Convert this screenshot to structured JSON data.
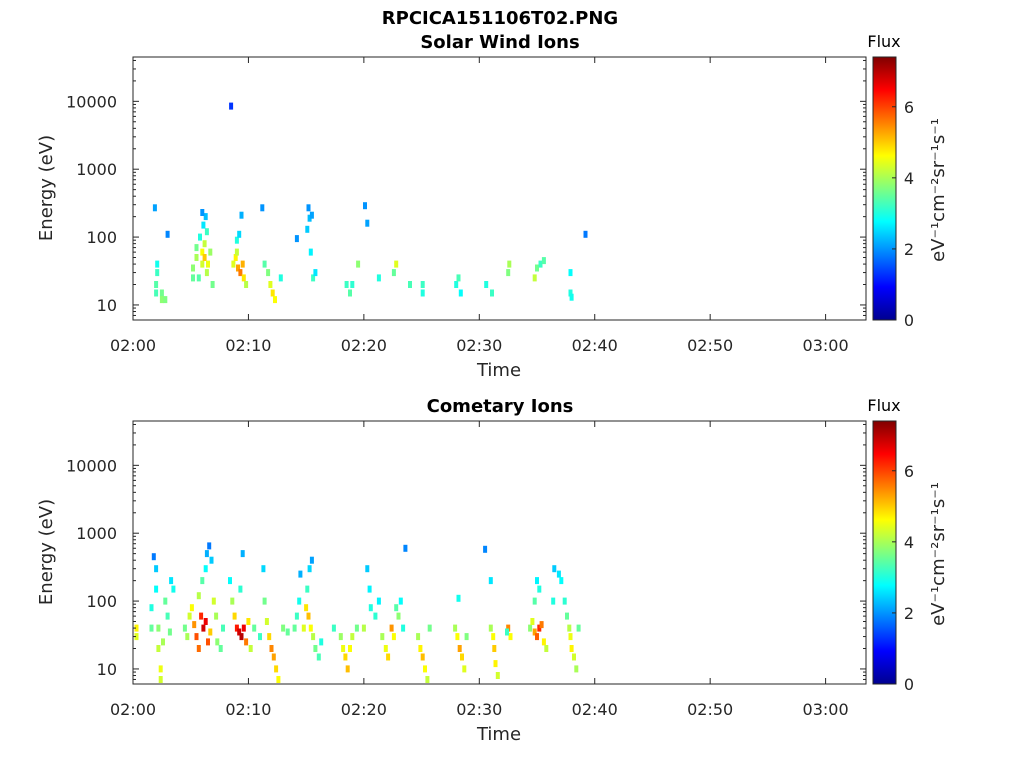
{
  "figure": {
    "title": "RPCICA151106T02.PNG"
  },
  "chart_data": [
    {
      "type": "heatmap",
      "title": "Solar Wind Ions",
      "xlabel": "Time",
      "ylabel": "Energy (eV)",
      "x_ticks": [
        "02:00",
        "02:10",
        "02:20",
        "02:30",
        "02:40",
        "02:50",
        "03:00"
      ],
      "y_ticks": [
        "10",
        "100",
        "1000",
        "10000"
      ],
      "y_scale": "log",
      "ylim": [
        6,
        45000
      ],
      "xlim_minutes": [
        0,
        63.5
      ],
      "colorbar": {
        "title": "Flux",
        "label": "eV⁻¹cm⁻²sr⁻¹s⁻¹",
        "ticks": [
          "0",
          "2",
          "4",
          "6"
        ],
        "range": [
          0,
          7.4
        ],
        "colormap": "jet"
      },
      "cells": [
        [
          2,
          15,
          3.3
        ],
        [
          2,
          20,
          3.4
        ],
        [
          2.5,
          15,
          3.6
        ],
        [
          2.5,
          12,
          3.8
        ],
        [
          2.8,
          12,
          3.7
        ],
        [
          2.1,
          40,
          2.9
        ],
        [
          2.1,
          30,
          3.2
        ],
        [
          1.9,
          270,
          2.1
        ],
        [
          3.0,
          110,
          1.9
        ],
        [
          5.2,
          25,
          3.5
        ],
        [
          5.2,
          35,
          3.8
        ],
        [
          5.5,
          50,
          4.0
        ],
        [
          5.5,
          70,
          3.6
        ],
        [
          5.7,
          25,
          3.4
        ],
        [
          5.8,
          100,
          3.0
        ],
        [
          6.0,
          40,
          4.3
        ],
        [
          6.0,
          60,
          4.6
        ],
        [
          6.2,
          50,
          5.0
        ],
        [
          6.2,
          80,
          4.2
        ],
        [
          6.4,
          30,
          4.1
        ],
        [
          6.4,
          120,
          3.2
        ],
        [
          6.5,
          40,
          4.5
        ],
        [
          6.7,
          60,
          3.9
        ],
        [
          6.9,
          20,
          3.6
        ],
        [
          6.1,
          150,
          2.6
        ],
        [
          6.3,
          200,
          2.3
        ],
        [
          6.0,
          230,
          2.0
        ],
        [
          8.5,
          8500,
          1.3
        ],
        [
          8.7,
          40,
          4.4
        ],
        [
          8.9,
          50,
          4.7
        ],
        [
          9.0,
          60,
          4.2
        ],
        [
          9.1,
          35,
          5.3
        ],
        [
          9.3,
          30,
          5.6
        ],
        [
          9.5,
          40,
          5.2
        ],
        [
          9.6,
          25,
          4.8
        ],
        [
          9.8,
          20,
          4.1
        ],
        [
          9.0,
          90,
          3.0
        ],
        [
          9.2,
          110,
          2.5
        ],
        [
          9.4,
          210,
          2.2
        ],
        [
          11.2,
          270,
          2.0
        ],
        [
          11.4,
          40,
          3.4
        ],
        [
          11.7,
          30,
          3.7
        ],
        [
          11.9,
          20,
          4.4
        ],
        [
          12.1,
          15,
          4.8
        ],
        [
          12.3,
          12,
          4.6
        ],
        [
          12.8,
          25,
          3.0
        ],
        [
          14.2,
          95,
          2.0
        ],
        [
          15.1,
          130,
          2.4
        ],
        [
          15.3,
          190,
          2.3
        ],
        [
          15.5,
          210,
          2.1
        ],
        [
          15.2,
          270,
          2.0
        ],
        [
          15.6,
          25,
          3.2
        ],
        [
          15.8,
          30,
          2.6
        ],
        [
          15.4,
          60,
          2.7
        ],
        [
          18.5,
          20,
          3.2
        ],
        [
          18.8,
          15,
          3.4
        ],
        [
          19.0,
          20,
          3.1
        ],
        [
          19.5,
          40,
          3.8
        ],
        [
          20.1,
          290,
          2.0
        ],
        [
          20.3,
          160,
          2.1
        ],
        [
          21.3,
          25,
          3.0
        ],
        [
          22.6,
          30,
          3.5
        ],
        [
          22.8,
          40,
          4.4
        ],
        [
          24.0,
          20,
          3.3
        ],
        [
          25.1,
          15,
          3.0
        ],
        [
          25.1,
          20,
          3.2
        ],
        [
          28.0,
          20,
          3.0
        ],
        [
          28.2,
          25,
          3.3
        ],
        [
          28.4,
          15,
          2.8
        ],
        [
          30.6,
          20,
          3.0
        ],
        [
          31.1,
          15,
          3.2
        ],
        [
          32.6,
          40,
          4.0
        ],
        [
          32.5,
          30,
          3.7
        ],
        [
          34.8,
          25,
          4.2
        ],
        [
          35.0,
          35,
          3.6
        ],
        [
          35.3,
          40,
          3.2
        ],
        [
          35.6,
          45,
          3.4
        ],
        [
          37.9,
          30,
          2.8
        ],
        [
          37.9,
          15,
          3.0
        ],
        [
          38.0,
          13,
          2.9
        ],
        [
          39.2,
          110,
          1.8
        ]
      ]
    },
    {
      "type": "heatmap",
      "title": "Cometary Ions",
      "xlabel": "Time",
      "ylabel": "Energy (eV)",
      "x_ticks": [
        "02:00",
        "02:10",
        "02:20",
        "02:30",
        "02:40",
        "02:50",
        "03:00"
      ],
      "y_ticks": [
        "10",
        "100",
        "1000",
        "10000"
      ],
      "y_scale": "log",
      "ylim": [
        6,
        45000
      ],
      "xlim_minutes": [
        0,
        63.5
      ],
      "colorbar": {
        "title": "Flux",
        "label": "eV⁻¹cm⁻²sr⁻¹s⁻¹",
        "ticks": [
          "0",
          "2",
          "4",
          "6"
        ],
        "range": [
          0,
          7.4
        ],
        "colormap": "jet"
      },
      "cells": [
        [
          0.3,
          40,
          4.7
        ],
        [
          0.3,
          30,
          4.4
        ],
        [
          1.6,
          40,
          3.5
        ],
        [
          1.6,
          80,
          3.0
        ],
        [
          1.8,
          450,
          1.8
        ],
        [
          2.0,
          150,
          2.8
        ],
        [
          2.0,
          300,
          2.4
        ],
        [
          2.2,
          40,
          3.8
        ],
        [
          2.2,
          20,
          4.2
        ],
        [
          2.4,
          10,
          4.5
        ],
        [
          2.4,
          7,
          4.3
        ],
        [
          2.6,
          25,
          4.0
        ],
        [
          2.8,
          100,
          3.5
        ],
        [
          3.0,
          60,
          3.3
        ],
        [
          3.2,
          35,
          3.6
        ],
        [
          3.3,
          200,
          2.6
        ],
        [
          3.5,
          150,
          2.9
        ],
        [
          4.5,
          40,
          3.6
        ],
        [
          4.7,
          30,
          4.0
        ],
        [
          4.9,
          60,
          4.3
        ],
        [
          5.1,
          80,
          4.6
        ],
        [
          5.3,
          45,
          5.4
        ],
        [
          5.5,
          30,
          5.9
        ],
        [
          5.7,
          20,
          5.7
        ],
        [
          5.9,
          60,
          6.2
        ],
        [
          6.1,
          40,
          6.8
        ],
        [
          6.3,
          50,
          6.6
        ],
        [
          6.5,
          25,
          5.9
        ],
        [
          6.7,
          35,
          5.0
        ],
        [
          5.7,
          120,
          4.1
        ],
        [
          6.0,
          200,
          3.4
        ],
        [
          6.3,
          300,
          2.8
        ],
        [
          6.4,
          500,
          2.2
        ],
        [
          6.6,
          650,
          1.8
        ],
        [
          6.8,
          400,
          2.4
        ],
        [
          7.0,
          100,
          4.3
        ],
        [
          7.2,
          60,
          4.0
        ],
        [
          7.3,
          25,
          3.8
        ],
        [
          7.6,
          20,
          3.5
        ],
        [
          7.8,
          40,
          3.3
        ],
        [
          8.4,
          200,
          2.8
        ],
        [
          8.6,
          100,
          4.0
        ],
        [
          8.8,
          60,
          4.9
        ],
        [
          9.0,
          40,
          6.3
        ],
        [
          9.2,
          35,
          6.8
        ],
        [
          9.4,
          30,
          7.0
        ],
        [
          9.6,
          40,
          6.6
        ],
        [
          9.8,
          25,
          5.6
        ],
        [
          10.0,
          50,
          4.8
        ],
        [
          10.2,
          20,
          4.2
        ],
        [
          9.3,
          150,
          3.1
        ],
        [
          9.5,
          500,
          2.2
        ],
        [
          10.5,
          40,
          3.5
        ],
        [
          11.0,
          30,
          3.2
        ],
        [
          11.4,
          100,
          3.6
        ],
        [
          11.6,
          50,
          4.3
        ],
        [
          11.8,
          30,
          4.9
        ],
        [
          12.0,
          20,
          5.5
        ],
        [
          12.2,
          15,
          5.3
        ],
        [
          12.4,
          10,
          4.9
        ],
        [
          12.6,
          7,
          4.6
        ],
        [
          11.3,
          300,
          2.5
        ],
        [
          13.0,
          40,
          3.7
        ],
        [
          13.4,
          35,
          3.5
        ],
        [
          14.0,
          40,
          3.5
        ],
        [
          14.2,
          60,
          3.2
        ],
        [
          14.4,
          100,
          2.9
        ],
        [
          14.5,
          250,
          2.2
        ],
        [
          14.8,
          40,
          4.4
        ],
        [
          15.0,
          80,
          4.8
        ],
        [
          15.2,
          60,
          5.1
        ],
        [
          15.4,
          40,
          4.6
        ],
        [
          15.6,
          30,
          4.1
        ],
        [
          15.1,
          150,
          3.2
        ],
        [
          15.3,
          300,
          2.5
        ],
        [
          15.5,
          400,
          2.1
        ],
        [
          15.8,
          20,
          3.6
        ],
        [
          16.1,
          15,
          3.3
        ],
        [
          16.3,
          25,
          3.0
        ],
        [
          17.4,
          40,
          3.2
        ],
        [
          18.0,
          30,
          3.9
        ],
        [
          18.2,
          20,
          4.5
        ],
        [
          18.4,
          15,
          4.9
        ],
        [
          18.6,
          10,
          5.1
        ],
        [
          18.8,
          20,
          4.6
        ],
        [
          19.0,
          30,
          4.2
        ],
        [
          19.4,
          40,
          3.6
        ],
        [
          20.0,
          40,
          4.1
        ],
        [
          20.3,
          300,
          2.4
        ],
        [
          20.5,
          150,
          2.7
        ],
        [
          20.6,
          80,
          3.0
        ],
        [
          21.0,
          60,
          3.1
        ],
        [
          21.3,
          100,
          2.7
        ],
        [
          21.6,
          30,
          4.0
        ],
        [
          21.9,
          20,
          4.5
        ],
        [
          22.1,
          15,
          4.9
        ],
        [
          22.4,
          40,
          5.4
        ],
        [
          22.6,
          30,
          4.6
        ],
        [
          22.8,
          80,
          3.4
        ],
        [
          23.0,
          60,
          3.8
        ],
        [
          23.2,
          100,
          2.8
        ],
        [
          23.6,
          600,
          1.9
        ],
        [
          23.4,
          40,
          3.0
        ],
        [
          24.7,
          30,
          4.0
        ],
        [
          24.9,
          20,
          4.7
        ],
        [
          25.1,
          15,
          5.1
        ],
        [
          25.3,
          10,
          4.6
        ],
        [
          25.5,
          7,
          4.2
        ],
        [
          25.7,
          40,
          3.6
        ],
        [
          27.9,
          40,
          4.0
        ],
        [
          28.1,
          30,
          4.6
        ],
        [
          28.3,
          20,
          5.3
        ],
        [
          28.5,
          15,
          4.9
        ],
        [
          28.7,
          10,
          4.4
        ],
        [
          28.9,
          30,
          3.7
        ],
        [
          28.2,
          110,
          2.9
        ],
        [
          30.5,
          580,
          1.9
        ],
        [
          31.0,
          200,
          2.6
        ],
        [
          31.0,
          40,
          4.0
        ],
        [
          31.2,
          30,
          4.6
        ],
        [
          31.3,
          20,
          5.0
        ],
        [
          31.4,
          12,
          4.7
        ],
        [
          31.6,
          8,
          4.3
        ],
        [
          32.5,
          40,
          5.5
        ],
        [
          32.7,
          30,
          4.6
        ],
        [
          32.4,
          35,
          3.2
        ],
        [
          34.4,
          40,
          3.8
        ],
        [
          34.6,
          50,
          4.4
        ],
        [
          34.8,
          35,
          5.3
        ],
        [
          35.0,
          30,
          5.8
        ],
        [
          35.2,
          40,
          6.2
        ],
        [
          35.4,
          45,
          5.6
        ],
        [
          35.6,
          25,
          4.7
        ],
        [
          35.8,
          20,
          4.2
        ],
        [
          34.8,
          100,
          3.4
        ],
        [
          35.0,
          200,
          2.7
        ],
        [
          35.2,
          150,
          3.0
        ],
        [
          36.4,
          100,
          3.0
        ],
        [
          36.5,
          300,
          2.4
        ],
        [
          36.9,
          250,
          2.6
        ],
        [
          37.1,
          200,
          2.8
        ],
        [
          37.4,
          100,
          3.1
        ],
        [
          37.6,
          60,
          3.5
        ],
        [
          37.8,
          40,
          4.1
        ],
        [
          37.9,
          30,
          4.5
        ],
        [
          38.0,
          20,
          4.7
        ],
        [
          38.2,
          15,
          4.3
        ],
        [
          38.4,
          10,
          4.0
        ],
        [
          38.6,
          40,
          3.5
        ]
      ]
    }
  ]
}
